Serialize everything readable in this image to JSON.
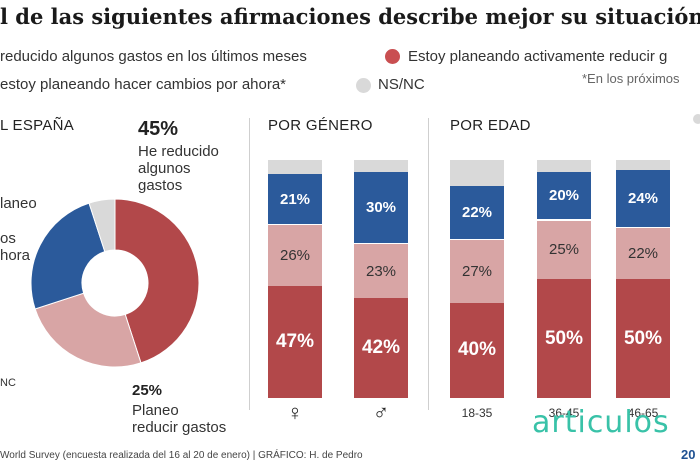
{
  "title": "l de las siguientes afirmaciones describe mejor su situación?",
  "legend": [
    {
      "label": "reducido algunos gastos en los últimos meses",
      "color": "#b2484a"
    },
    {
      "label": "Estoy planeando activamente reducir g",
      "color": "#c94f51"
    },
    {
      "label": "estoy planeando hacer cambios por ahora*",
      "color": "#2b5a9b"
    },
    {
      "label": "NS/NC",
      "color": "#d9d9d9"
    }
  ],
  "note": "*En los próximos",
  "sections": {
    "spain": "L ESPAÑA",
    "gender": "POR GÉNERO",
    "age": "POR EDAD"
  },
  "donut": {
    "top_pct": "45%",
    "top_label": "He reducido\nalgunos\ngastos",
    "bottom_pct": "25%",
    "bottom_label": "Planeo\nreducir gastos",
    "left_label_1": "laneo",
    "left_label_2": "os\nhora",
    "left_label_3": "NC"
  },
  "chart_data": {
    "type": "bar",
    "stacked": true,
    "categories": [
      "♀",
      "♂",
      "18-35",
      "36-45",
      "46-65"
    ],
    "series": [
      {
        "values": [
          47,
          42,
          40,
          50,
          50
        ],
        "color": "#b2484a"
      },
      {
        "values": [
          26,
          23,
          27,
          25,
          22
        ],
        "color": "#d8a5a5"
      },
      {
        "values": [
          21,
          30,
          22,
          20,
          24
        ],
        "color": "#2b5a9b"
      },
      {
        "values": [
          6,
          5,
          11,
          5,
          4
        ],
        "color": "#d9d9d9"
      }
    ],
    "labels": [
      [
        "47%",
        "42%",
        "40%",
        "50%",
        "50%"
      ],
      [
        "26%",
        "23%",
        "27%",
        "25%",
        "22%"
      ],
      [
        "21%",
        "30%",
        "22%",
        "20%",
        "24%"
      ]
    ],
    "ylim": [
      0,
      100
    ]
  },
  "donut_data": {
    "type": "pie",
    "slices": [
      {
        "value": 45,
        "color": "#b2484a"
      },
      {
        "value": 25,
        "color": "#d8a5a5"
      },
      {
        "value": 25,
        "color": "#2b5a9b"
      },
      {
        "value": 5,
        "color": "#d9d9d9"
      }
    ]
  },
  "footer": {
    "source": "World Survey (encuesta realizada del 16 al 20 de enero)  |  GRÁFICO: H. de Pedro",
    "brand": "articulos",
    "year": "20"
  }
}
